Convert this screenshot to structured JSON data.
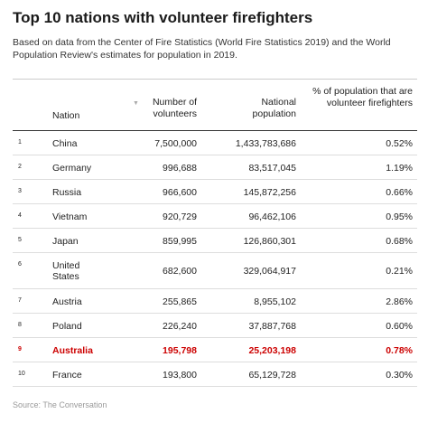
{
  "title": "Top 10 nations with volunteer firefighters",
  "subtitle": "Based on data from the Center of Fire Statistics (World Fire Statistics 2019) and the World Population Review's estimates for population in 2019.",
  "columns": {
    "nation": "Nation",
    "volunteers": "Number of volunteers",
    "population": "National population",
    "percent": "% of population that are volunteer firefighters"
  },
  "sort_icon": "sort-down-icon",
  "rows": [
    {
      "rank": "1",
      "nation": "China",
      "volunteers": "7,500,000",
      "population": "1,433,783,686",
      "percent": "0.52%"
    },
    {
      "rank": "2",
      "nation": "Germany",
      "volunteers": "996,688",
      "population": "83,517,045",
      "percent": "1.19%"
    },
    {
      "rank": "3",
      "nation": "Russia",
      "volunteers": "966,600",
      "population": "145,872,256",
      "percent": "0.66%"
    },
    {
      "rank": "4",
      "nation": "Vietnam",
      "volunteers": "920,729",
      "population": "96,462,106",
      "percent": "0.95%"
    },
    {
      "rank": "5",
      "nation": "Japan",
      "volunteers": "859,995",
      "population": "126,860,301",
      "percent": "0.68%"
    },
    {
      "rank": "6",
      "nation": "United States",
      "volunteers": "682,600",
      "population": "329,064,917",
      "percent": "0.21%"
    },
    {
      "rank": "7",
      "nation": "Austria",
      "volunteers": "255,865",
      "population": "8,955,102",
      "percent": "2.86%"
    },
    {
      "rank": "8",
      "nation": "Poland",
      "volunteers": "226,240",
      "population": "37,887,768",
      "percent": "0.60%"
    },
    {
      "rank": "9",
      "nation": "Australia",
      "volunteers": "195,798",
      "population": "25,203,198",
      "percent": "0.78%"
    },
    {
      "rank": "10",
      "nation": "France",
      "volunteers": "193,800",
      "population": "65,129,728",
      "percent": "0.30%"
    }
  ],
  "highlight_color": "#cc0000",
  "source": "Source: The Conversation"
}
